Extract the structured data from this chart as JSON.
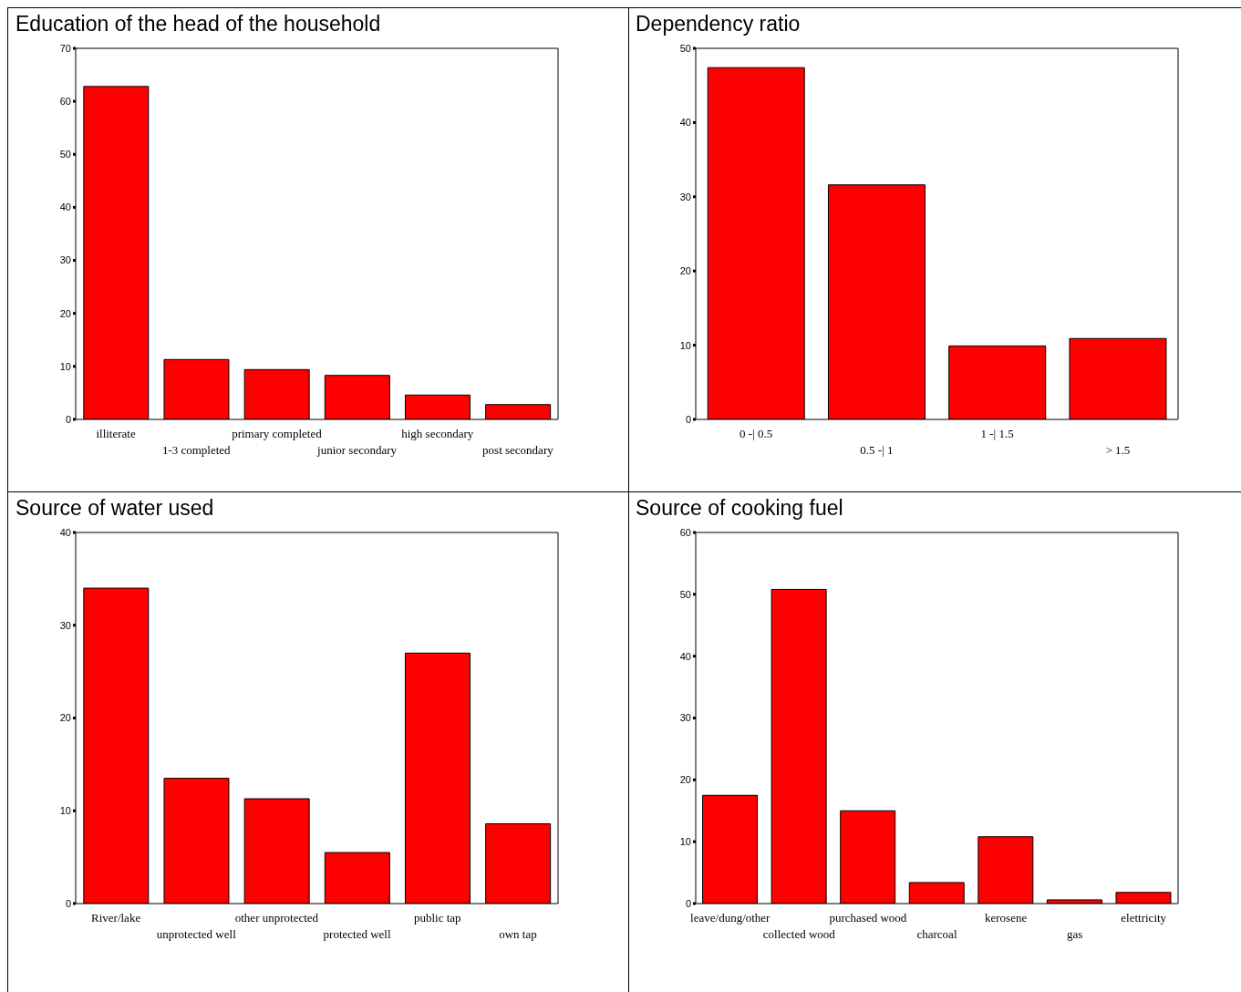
{
  "chart_data": [
    {
      "type": "bar",
      "title": "Education of the head of the household",
      "categories": [
        "illiterate",
        "1-3 completed",
        "primary completed",
        "junior secondary",
        "high secondary",
        "post secondary"
      ],
      "values": [
        62.8,
        11.3,
        9.4,
        8.3,
        4.6,
        2.8
      ],
      "color": "#ff0000",
      "ylim": [
        0,
        70
      ],
      "yticks": [
        0,
        10,
        20,
        30,
        40,
        50,
        60,
        70
      ]
    },
    {
      "type": "bar",
      "title": "Dependency ratio",
      "categories": [
        "0 -| 0.5",
        "0.5 -| 1",
        "1 -| 1.5",
        "> 1.5"
      ],
      "values": [
        47.4,
        31.6,
        9.9,
        10.9
      ],
      "color": "#ff0000",
      "ylim": [
        0,
        50
      ],
      "yticks": [
        0,
        10,
        20,
        30,
        40,
        50
      ]
    },
    {
      "type": "bar",
      "title": "Source of water used",
      "categories": [
        "River/lake",
        "unprotected well",
        "other unprotected",
        "protected well",
        "public tap",
        "own tap"
      ],
      "values": [
        34.0,
        13.5,
        11.3,
        5.5,
        27.0,
        8.6
      ],
      "color": "#ff0000",
      "ylim": [
        0,
        40
      ],
      "yticks": [
        0,
        10,
        20,
        30,
        40
      ]
    },
    {
      "type": "bar",
      "title": "Source of cooking fuel",
      "categories": [
        "leave/dung/other",
        "collected wood",
        "purchased wood",
        "charcoal",
        "kerosene",
        "gas",
        "elettricity"
      ],
      "values": [
        17.5,
        50.8,
        15.0,
        3.4,
        10.8,
        0.6,
        1.8
      ],
      "color": "#ff0000",
      "ylim": [
        0,
        60
      ],
      "yticks": [
        0,
        10,
        20,
        30,
        40,
        50,
        60
      ]
    }
  ]
}
